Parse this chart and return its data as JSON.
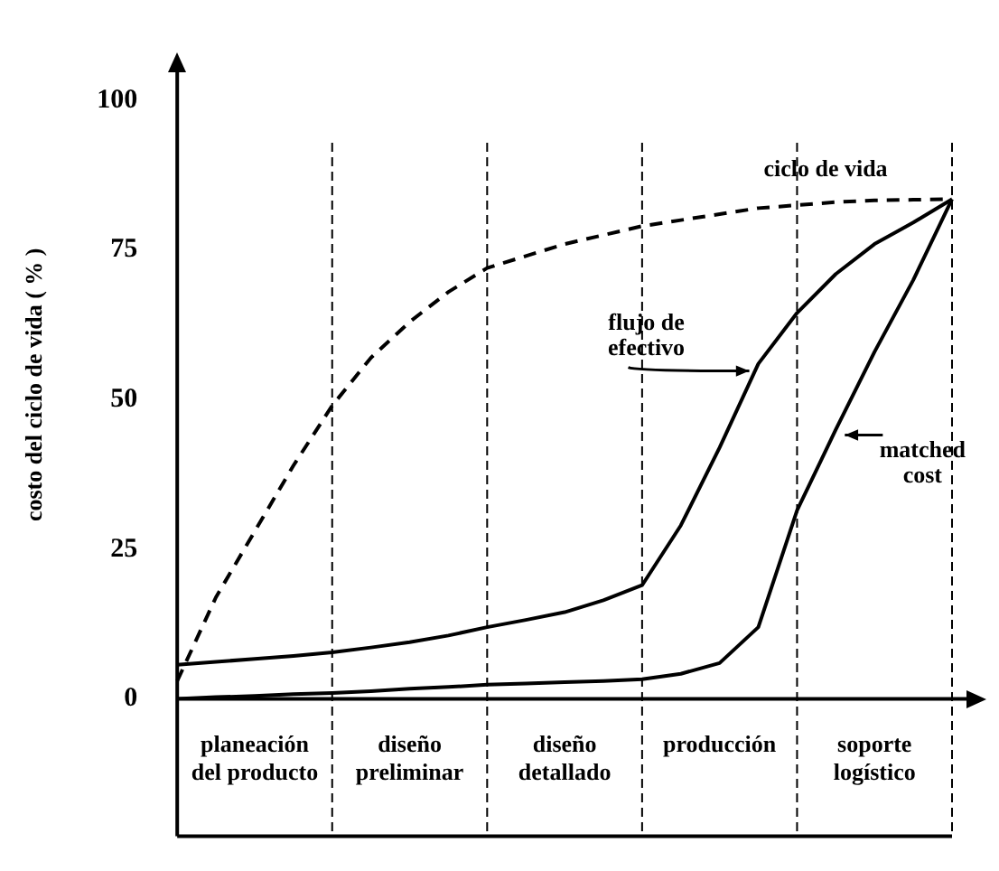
{
  "chart_data": {
    "type": "line",
    "ylabel": "costo del ciclo de vida ( % )",
    "categories": [
      null,
      null,
      "planeación del producto",
      null,
      null,
      null,
      "diseño preliminar",
      null,
      null,
      null,
      "diseño detallado",
      null,
      null,
      null,
      "producción",
      null,
      null,
      null,
      "soporte logístico",
      null,
      null
    ],
    "ylim": [
      0,
      105
    ],
    "yticks": [
      0,
      25,
      50,
      75,
      100
    ],
    "grid": "x",
    "marker": "none",
    "series": [
      {
        "name": "ciclo de vida",
        "color": "#000000",
        "line_style": "dashed",
        "values": [
          3,
          17,
          28,
          39,
          49,
          57,
          63,
          68,
          72,
          74,
          76,
          77.5,
          79,
          80,
          81,
          82,
          82.5,
          83,
          83.3,
          83.4,
          83.5
        ]
      },
      {
        "name": "flujo de efectivo",
        "color": "#000000",
        "line_style": "solid",
        "values": [
          5.7,
          6.2,
          6.7,
          7.2,
          7.8,
          8.6,
          9.5,
          10.6,
          12,
          13.2,
          14.5,
          16.5,
          19,
          29,
          42,
          56,
          64.5,
          71,
          76,
          79.6,
          83.5
        ]
      },
      {
        "name": "matched cost",
        "color": "#000000",
        "line_style": "solid",
        "values": [
          0,
          0.3,
          0.5,
          0.8,
          1,
          1.3,
          1.7,
          2,
          2.4,
          2.6,
          2.8,
          3,
          3.3,
          4.2,
          6,
          12,
          31.5,
          45,
          58,
          70,
          83.5
        ]
      }
    ]
  }
}
